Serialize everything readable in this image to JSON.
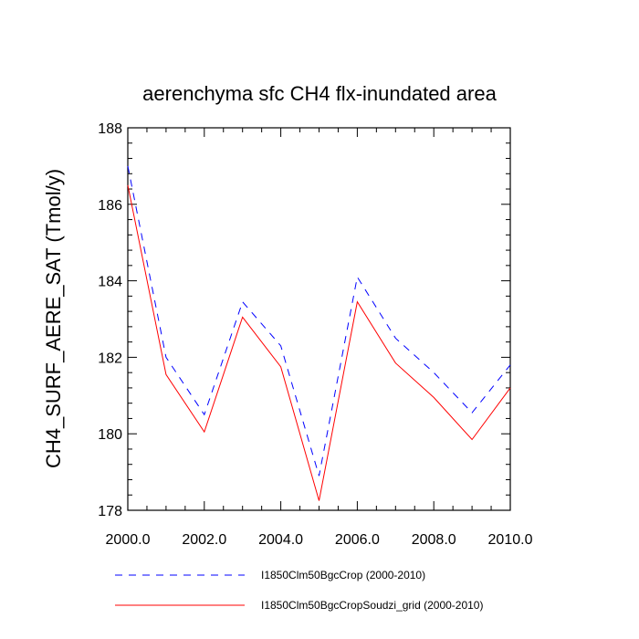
{
  "chart_data": {
    "type": "line",
    "title": "aerenchyma sfc CH4 flx-inundated area",
    "xlabel": "",
    "ylabel": "CH4_SURF_AERE_SAT  (Tmol/y)",
    "xlim": [
      2000,
      2010
    ],
    "ylim": [
      178,
      188
    ],
    "xticks": [
      "2000.0",
      "2002.0",
      "2004.0",
      "2006.0",
      "2008.0",
      "2010.0"
    ],
    "yticks": [
      "178",
      "180",
      "182",
      "184",
      "186",
      "188"
    ],
    "x": [
      2000,
      2001,
      2002,
      2003,
      2004,
      2005,
      2006,
      2007,
      2008,
      2009,
      2010
    ],
    "series": [
      {
        "name": "I1850Clm50BgcCrop (2000-2010)",
        "color": "#0000ff",
        "dash": "dashed",
        "values": [
          187.0,
          182.0,
          180.5,
          183.45,
          182.3,
          178.9,
          184.1,
          182.5,
          181.6,
          180.55,
          181.8
        ]
      },
      {
        "name": "I1850Clm50BgcCropSoudzi_grid (2000-2010)",
        "color": "#ff0000",
        "dash": "solid",
        "values": [
          186.5,
          181.55,
          180.05,
          183.05,
          181.75,
          178.25,
          183.45,
          181.85,
          180.95,
          179.85,
          181.2
        ]
      }
    ],
    "grid": false,
    "legend_position": "bottom"
  }
}
